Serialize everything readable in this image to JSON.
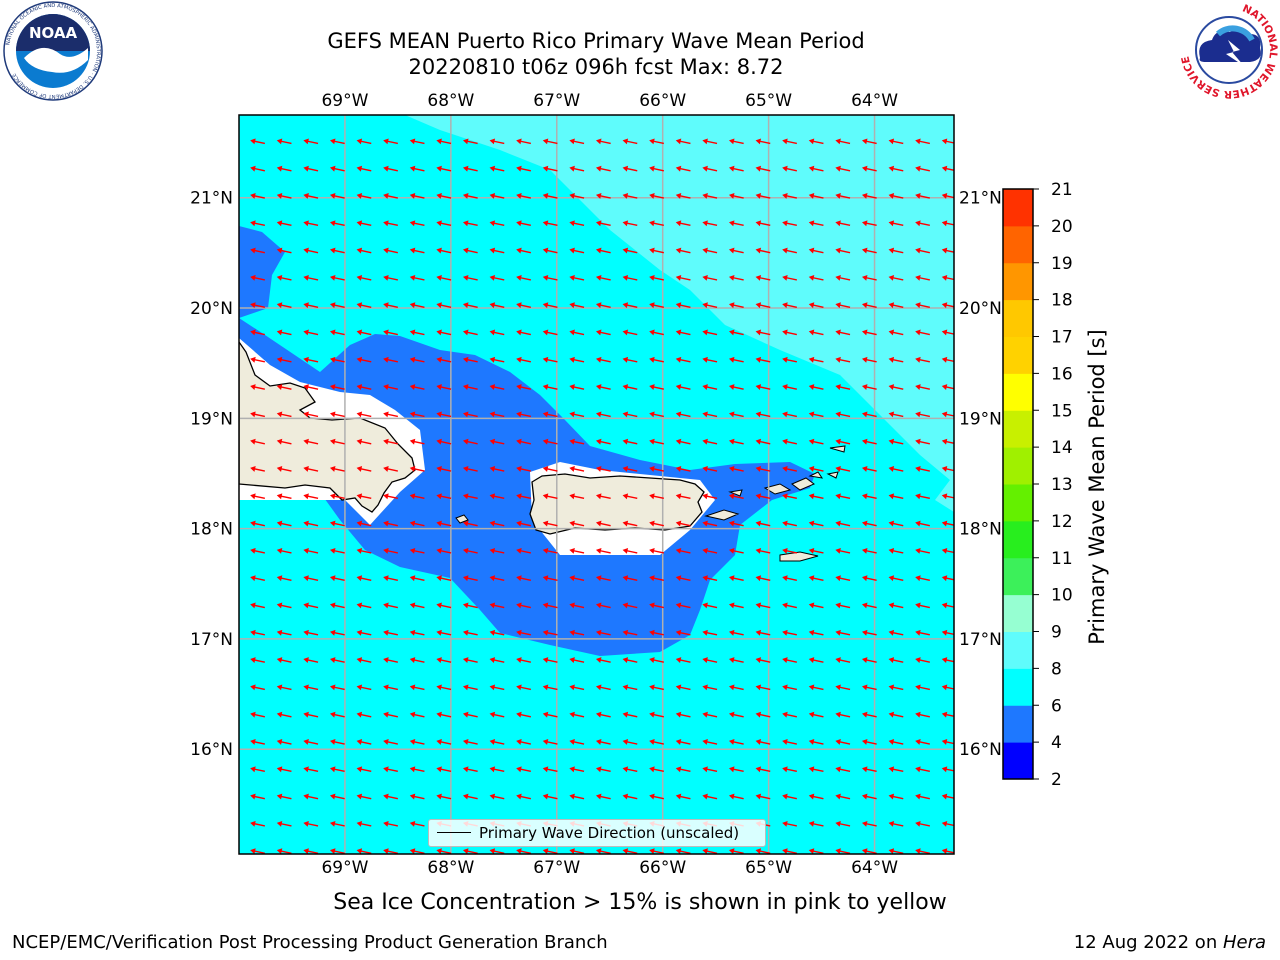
{
  "title": {
    "line1": "GEFS MEAN Puerto Rico Primary Wave Mean Period",
    "line2": "20220810 t06z 096h fcst   Max: 8.72"
  },
  "logos": {
    "left": {
      "icon": "noaa-logo",
      "text": "NOAA",
      "ring_text": "NATIONAL OCEANIC AND ATMOSPHERIC ADMINISTRATION · U.S. DEPARTMENT OF COMMERCE"
    },
    "right": {
      "icon": "nws-logo",
      "ring_text": "NATIONAL WEATHER SERVICE"
    }
  },
  "map": {
    "lon_ticks": [
      "69°W",
      "68°W",
      "67°W",
      "66°W",
      "65°W",
      "64°W"
    ],
    "lat_ticks": [
      "21°N",
      "20°N",
      "19°N",
      "18°N",
      "17°N",
      "16°N"
    ],
    "lon_values": [
      -69,
      -68,
      -67,
      -66,
      -65,
      -64
    ],
    "lat_values": [
      21,
      20,
      19,
      18,
      17,
      16
    ],
    "extent": {
      "lon_min": -70.0,
      "lon_max": -63.25,
      "lat_min": 15.05,
      "lat_max": 21.75
    },
    "arrow_direction": "westward (toward east-northeast origin)",
    "colors": {
      "period_4_6": "#1e78ff",
      "period_6_8": "#00ffff",
      "period_8_9": "#5ffcfc",
      "land": "#efecdc",
      "arrows": "#ff0000",
      "grid": "#b0b0b0"
    }
  },
  "legend": {
    "label": "Primary Wave Direction (unscaled)"
  },
  "colorbar": {
    "label": "Primary Wave Mean Period [s]",
    "ticks": [
      "2",
      "4",
      "6",
      "8",
      "9",
      "10",
      "11",
      "12",
      "13",
      "14",
      "15",
      "16",
      "17",
      "18",
      "19",
      "20",
      "21"
    ],
    "colors": [
      "#0000ff",
      "#1e78ff",
      "#00ffff",
      "#5ffcfc",
      "#96ffd2",
      "#3cf05a",
      "#28ee1e",
      "#64f000",
      "#a0f000",
      "#c8f000",
      "#ffff00",
      "#ffd200",
      "#ffc800",
      "#ff9600",
      "#ff6400",
      "#ff3200",
      "#ff0000"
    ]
  },
  "subcaption": "Sea Ice Concentration > 15% is shown in pink to yellow",
  "footer": {
    "left": "NCEP/EMC/Verification Post Processing Product Generation Branch",
    "right_prefix": "12 Aug 2022 on ",
    "right_machine": "Hera"
  }
}
